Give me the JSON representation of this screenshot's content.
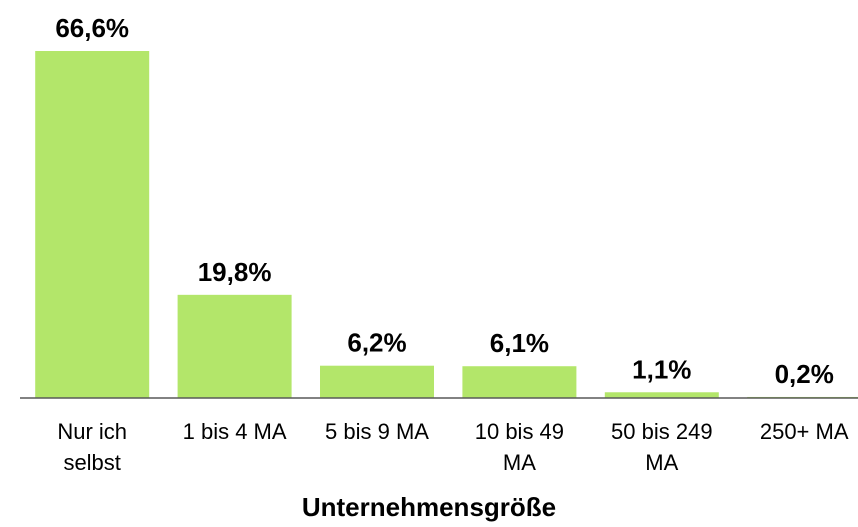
{
  "chart_data": {
    "type": "bar",
    "categories": [
      "Nur ich selbst",
      "1 bis 4 MA",
      "5 bis 9 MA",
      "10 bis 49 MA",
      "50 bis 249 MA",
      "250+ MA"
    ],
    "values": [
      66.6,
      19.8,
      6.2,
      6.1,
      1.1,
      0.2
    ],
    "value_labels": [
      "66,6%",
      "19,8%",
      "6,2%",
      "6,1%",
      "1,1%",
      "0,2%"
    ],
    "color": "#b3e66a",
    "x_label": "Unternehmensgröße"
  }
}
